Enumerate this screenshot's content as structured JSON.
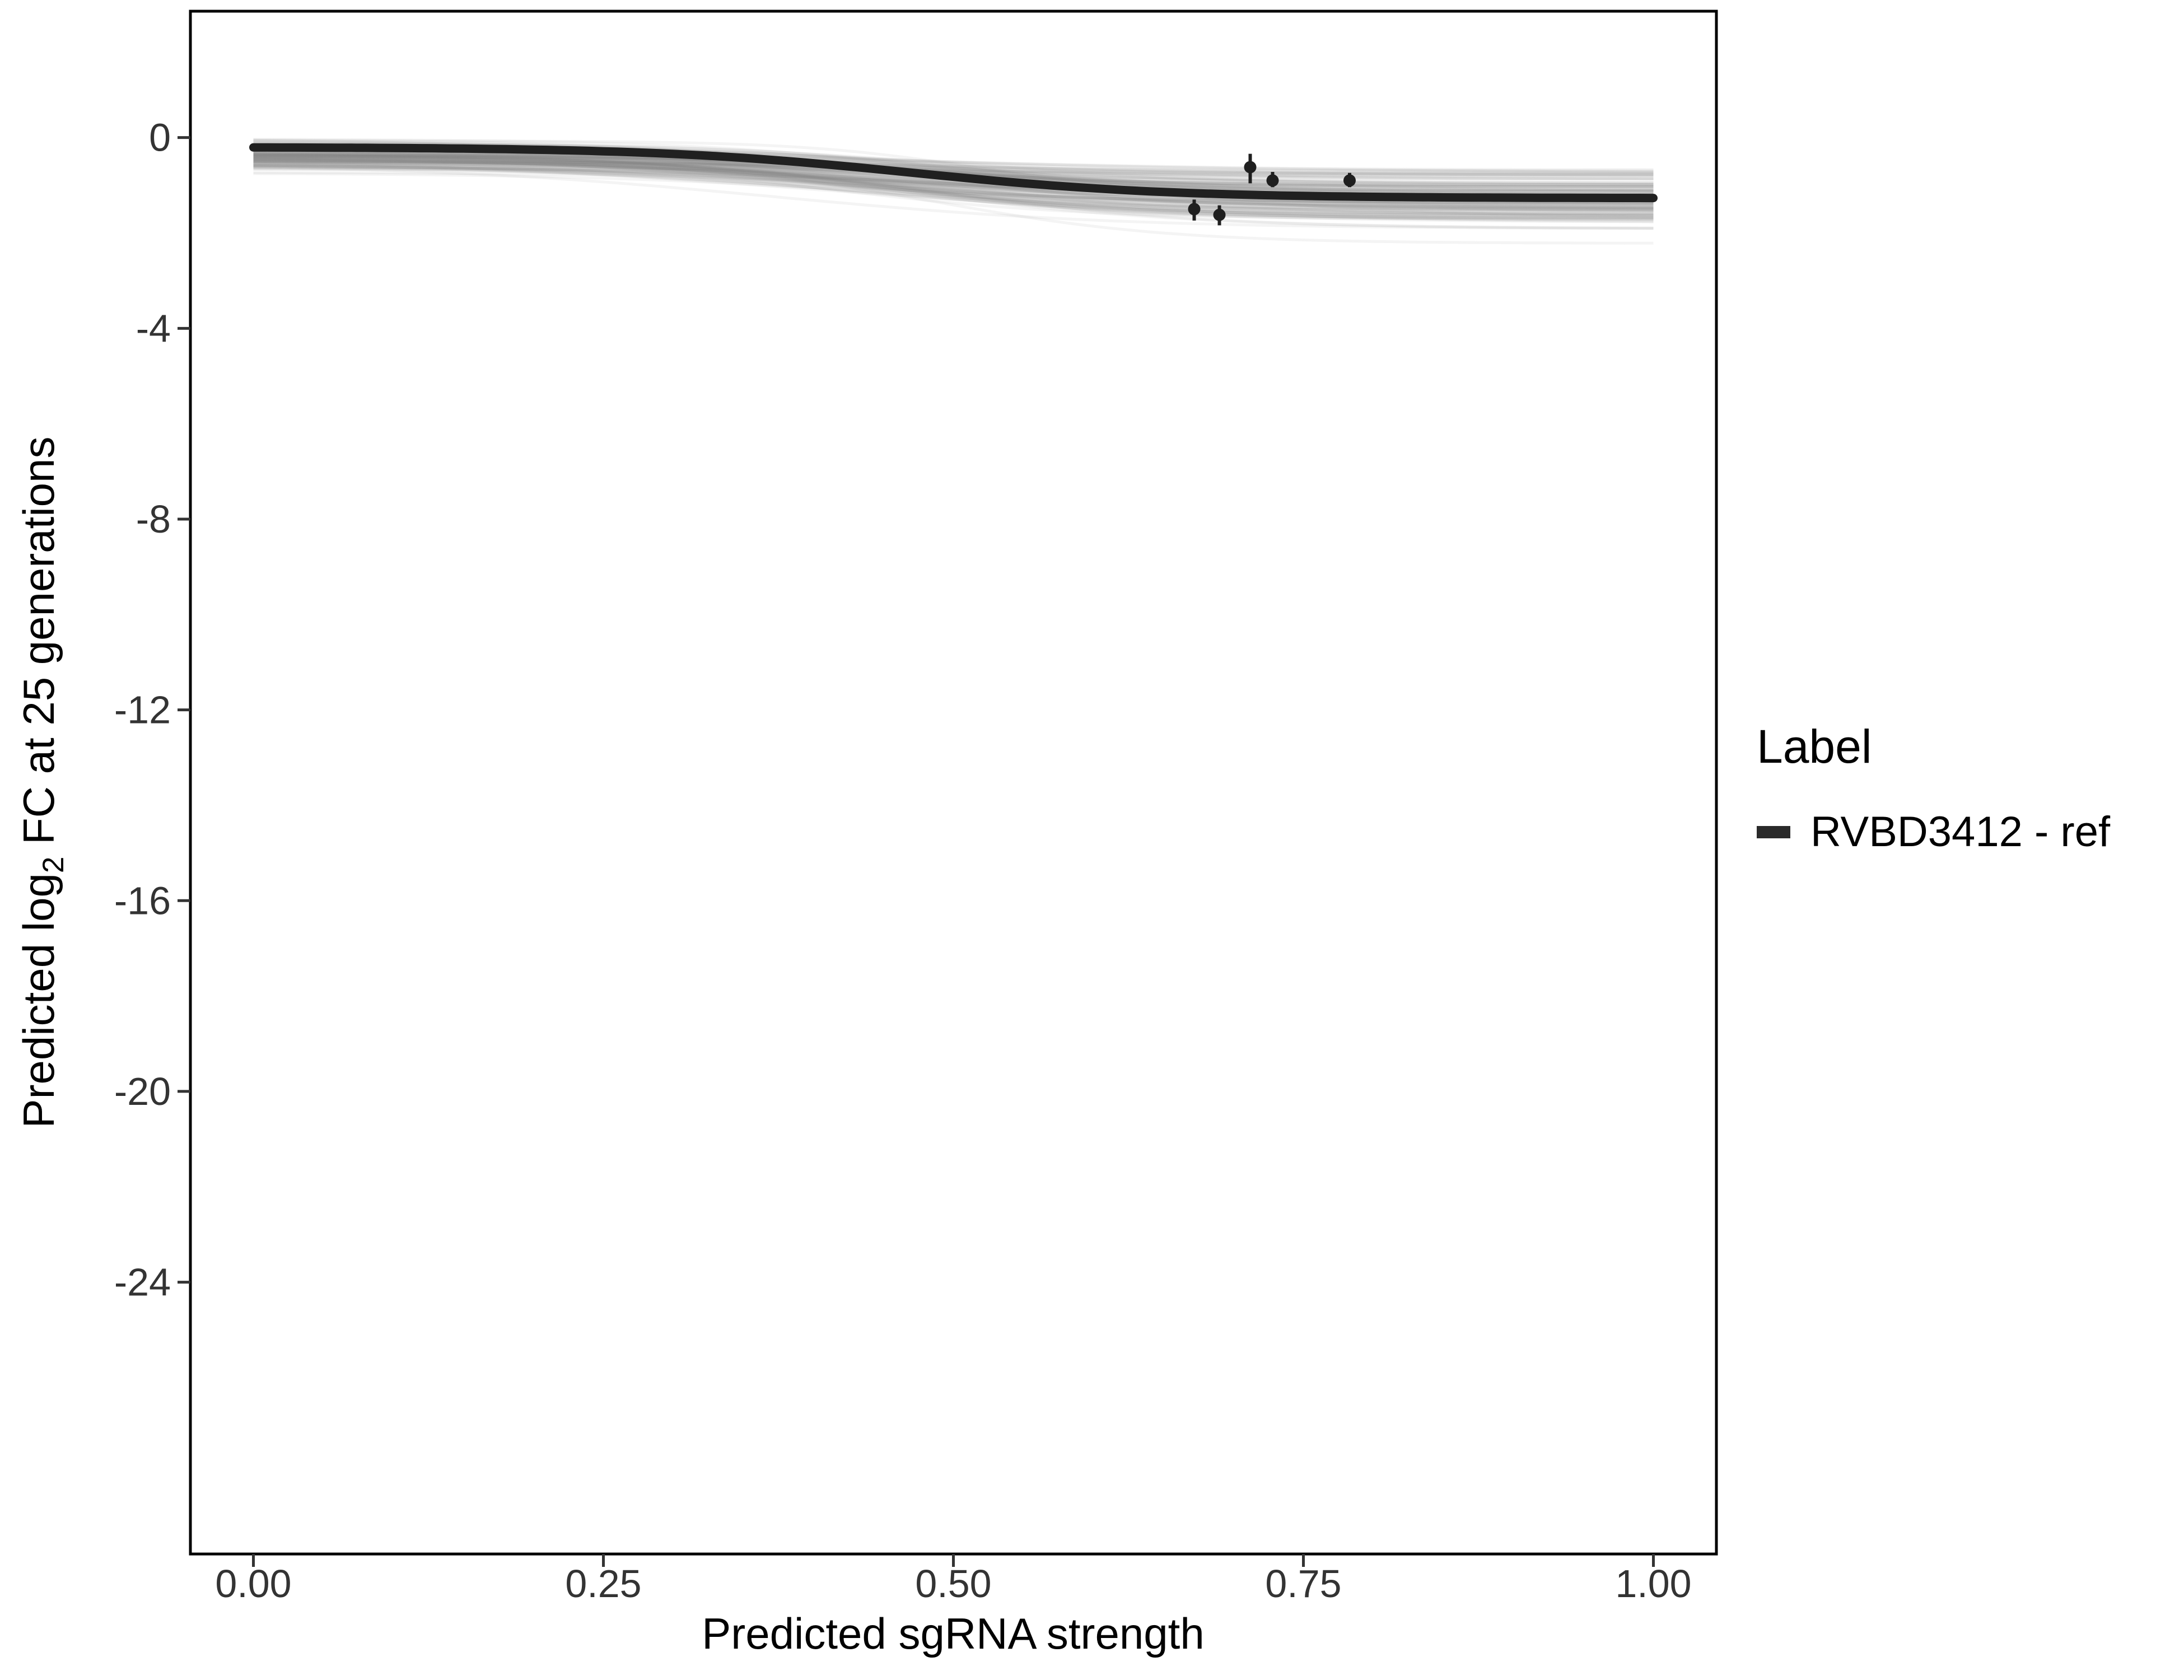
{
  "chart": {
    "xlabel": "Predicted sgRNA strength",
    "ylabel_prefix": "Predicted log",
    "ylabel_sub": "2",
    "ylabel_suffix": " FC at 25 generations"
  },
  "legend": {
    "title": "Label",
    "entries": [
      {
        "label": "RVBD3412 - ref",
        "color": "#2a2a2a"
      }
    ]
  },
  "chart_data": {
    "type": "line",
    "title": "",
    "xlabel": "Predicted sgRNA strength",
    "ylabel": "Predicted log2 FC at 25 generations",
    "xlim": [
      -0.045,
      1.045
    ],
    "ylim": [
      -29.7,
      2.65
    ],
    "x_ticks": [
      0,
      0.25,
      0.5,
      0.75,
      1
    ],
    "x_tick_labels": [
      "0.00",
      "0.25",
      "0.50",
      "0.75",
      "1.00"
    ],
    "y_ticks": [
      0,
      -4,
      -8,
      -12,
      -16,
      -20,
      -24
    ],
    "y_tick_labels": [
      "0",
      "-4",
      "-8",
      "-12",
      "-16",
      "-20",
      "-24"
    ],
    "grid": false,
    "legend_position": "right",
    "panel_border_color": "#000000",
    "tick_color": "#333333",
    "reference_curve": {
      "name": "RVBD3412 - ref",
      "model": "sigmoid",
      "x_range": [
        0,
        1
      ],
      "y_start": -0.2,
      "y_end": -1.27,
      "midpoint": 0.47,
      "steepness": 11,
      "color": "#202020",
      "width": 15
    },
    "ensemble": {
      "description": "posterior sample curves (gray band)",
      "count": 150,
      "model": "sigmoid",
      "x_range": [
        0,
        1
      ],
      "y_start_mean": -0.38,
      "y_start_sd": 0.16,
      "y_end_mean": -1.3,
      "y_end_sd": 0.28,
      "midpoint_mean": 0.46,
      "midpoint_sd": 0.05,
      "steepness_mean": 10,
      "steepness_sd": 2,
      "color": "#888888",
      "opacity": 0.09,
      "width": 5,
      "seed": 42
    },
    "points": [
      {
        "x": 0.672,
        "y": -1.5,
        "ymin": -1.74,
        "ymax": -1.3
      },
      {
        "x": 0.69,
        "y": -1.62,
        "ymin": -1.84,
        "ymax": -1.42
      },
      {
        "x": 0.712,
        "y": -0.62,
        "ymin": -0.96,
        "ymax": -0.34
      },
      {
        "x": 0.728,
        "y": -0.9,
        "ymin": -1.04,
        "ymax": -0.72
      },
      {
        "x": 0.783,
        "y": -0.9,
        "ymin": -1.04,
        "ymax": -0.74
      }
    ],
    "point_color": "#1f1f1f"
  }
}
